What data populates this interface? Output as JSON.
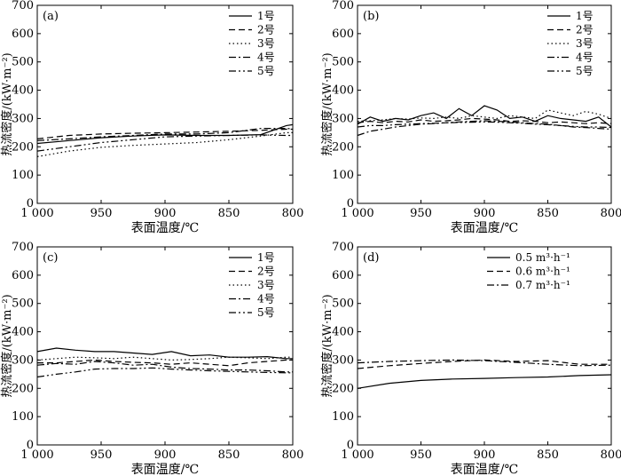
{
  "figure": {
    "panels": [
      {
        "label": "(a)",
        "xlabel": "表面温度/℃",
        "ylabel": "热流密度/(kW·m⁻²)"
      },
      {
        "label": "(b)",
        "xlabel": "表面温度/℃",
        "ylabel": "热流密度/(kW·m⁻²)"
      },
      {
        "label": "(c)",
        "xlabel": "表面温度/℃",
        "ylabel": "热流密度/(kW·m⁻²)"
      },
      {
        "label": "(d)",
        "xlabel": "表面温度/℃",
        "ylabel": "热流密度/(kW·m⁻²)"
      }
    ]
  },
  "chart_data": [
    {
      "panel": "(a)",
      "type": "line",
      "title": "",
      "xlabel": "表面温度/℃",
      "ylabel": "热流密度/(kW·m⁻²)",
      "xlim": [
        1000,
        800
      ],
      "ylim": [
        0,
        700
      ],
      "xticks": [
        1000,
        950,
        900,
        850,
        800
      ],
      "xtick_labels": [
        "1 000",
        "950",
        "900",
        "850",
        "800"
      ],
      "yticks": [
        0,
        100,
        200,
        300,
        400,
        500,
        600,
        700
      ],
      "grid": false,
      "legend_position": "top-right",
      "x": [
        1000,
        975,
        950,
        925,
        900,
        875,
        850,
        825,
        805,
        800
      ],
      "series": [
        {
          "name": "1号",
          "style": "solid",
          "values": [
            212,
            222,
            232,
            238,
            242,
            240,
            240,
            243,
            275,
            278
          ]
        },
        {
          "name": "2号",
          "style": "dashed",
          "values": [
            228,
            240,
            245,
            248,
            250,
            252,
            255,
            258,
            262,
            262
          ]
        },
        {
          "name": "3号",
          "style": "dotted",
          "values": [
            165,
            185,
            198,
            205,
            210,
            215,
            225,
            238,
            250,
            250
          ]
        },
        {
          "name": "4号",
          "style": "dashdot",
          "values": [
            222,
            228,
            235,
            240,
            245,
            245,
            250,
            265,
            265,
            263
          ]
        },
        {
          "name": "5号",
          "style": "dashdotdot",
          "values": [
            185,
            200,
            215,
            225,
            235,
            238,
            240,
            242,
            240,
            240
          ]
        }
      ]
    },
    {
      "panel": "(b)",
      "type": "line",
      "title": "",
      "xlabel": "表面温度/℃",
      "ylabel": "热流密度/(kW·m⁻²)",
      "xlim": [
        1000,
        800
      ],
      "ylim": [
        0,
        700
      ],
      "xticks": [
        1000,
        950,
        900,
        850,
        800
      ],
      "xtick_labels": [
        "1 000",
        "950",
        "900",
        "850",
        "800"
      ],
      "yticks": [
        0,
        100,
        200,
        300,
        400,
        500,
        600,
        700
      ],
      "grid": false,
      "legend_position": "top-right",
      "x": [
        1000,
        990,
        980,
        970,
        960,
        950,
        940,
        930,
        920,
        910,
        900,
        890,
        880,
        870,
        860,
        850,
        840,
        830,
        820,
        810,
        800
      ],
      "series": [
        {
          "name": "1号",
          "style": "solid",
          "values": [
            280,
            305,
            290,
            300,
            295,
            310,
            320,
            300,
            335,
            310,
            345,
            330,
            300,
            305,
            290,
            310,
            300,
            295,
            290,
            305,
            270
          ]
        },
        {
          "name": "2号",
          "style": "dashed",
          "values": [
            285,
            290,
            285,
            290,
            288,
            295,
            290,
            292,
            295,
            300,
            298,
            295,
            290,
            292,
            290,
            285,
            288,
            285,
            282,
            285,
            282
          ]
        },
        {
          "name": "3号",
          "style": "dotted",
          "values": [
            290,
            292,
            295,
            300,
            298,
            302,
            300,
            305,
            300,
            310,
            305,
            300,
            310,
            305,
            300,
            330,
            320,
            310,
            325,
            315,
            300
          ]
        },
        {
          "name": "4号",
          "style": "dashdot",
          "values": [
            240,
            255,
            262,
            270,
            275,
            280,
            282,
            285,
            288,
            290,
            292,
            290,
            288,
            285,
            282,
            280,
            275,
            270,
            268,
            265,
            262
          ]
        },
        {
          "name": "5号",
          "style": "dashdotdot",
          "values": [
            270,
            275,
            275,
            278,
            280,
            282,
            283,
            285,
            286,
            287,
            288,
            287,
            285,
            283,
            280,
            278,
            275,
            272,
            270,
            270,
            268
          ]
        }
      ]
    },
    {
      "panel": "(c)",
      "type": "line",
      "title": "",
      "xlabel": "表面温度/℃",
      "ylabel": "热流密度/(kW·m⁻²)",
      "xlim": [
        1000,
        800
      ],
      "ylim": [
        0,
        700
      ],
      "xticks": [
        1000,
        950,
        900,
        850,
        800
      ],
      "xtick_labels": [
        "1 000",
        "950",
        "900",
        "850",
        "800"
      ],
      "yticks": [
        0,
        100,
        200,
        300,
        400,
        500,
        600,
        700
      ],
      "grid": false,
      "legend_position": "top-right",
      "x": [
        1000,
        985,
        970,
        955,
        940,
        925,
        910,
        895,
        880,
        865,
        850,
        835,
        820,
        805,
        800
      ],
      "series": [
        {
          "name": "1号",
          "style": "solid",
          "values": [
            330,
            342,
            335,
            330,
            330,
            325,
            320,
            330,
            315,
            318,
            310,
            310,
            312,
            305,
            305
          ]
        },
        {
          "name": "2号",
          "style": "dashed",
          "values": [
            290,
            290,
            295,
            300,
            295,
            292,
            290,
            285,
            290,
            285,
            280,
            290,
            295,
            300,
            300
          ]
        },
        {
          "name": "3号",
          "style": "dotted",
          "values": [
            300,
            305,
            310,
            308,
            305,
            310,
            305,
            300,
            302,
            305,
            310,
            308,
            305,
            310,
            310
          ]
        },
        {
          "name": "4号",
          "style": "dashdot",
          "values": [
            282,
            288,
            285,
            295,
            290,
            282,
            285,
            275,
            270,
            268,
            265,
            265,
            262,
            258,
            258
          ]
        },
        {
          "name": "5号",
          "style": "dashdotdot",
          "values": [
            240,
            250,
            258,
            268,
            270,
            270,
            272,
            268,
            265,
            262,
            260,
            258,
            256,
            255,
            255
          ]
        }
      ]
    },
    {
      "panel": "(d)",
      "type": "line",
      "title": "",
      "xlabel": "表面温度/℃",
      "ylabel": "热流密度/(kW·m⁻²)",
      "xlim": [
        1000,
        800
      ],
      "ylim": [
        0,
        700
      ],
      "xticks": [
        1000,
        950,
        900,
        850,
        800
      ],
      "xtick_labels": [
        "1 000",
        "950",
        "900",
        "850",
        "800"
      ],
      "yticks": [
        0,
        100,
        200,
        300,
        400,
        500,
        600,
        700
      ],
      "grid": false,
      "legend_position": "top-right",
      "x": [
        1000,
        975,
        950,
        925,
        900,
        875,
        850,
        825,
        800
      ],
      "series": [
        {
          "name": "0.5 m³·h⁻¹",
          "style": "solid",
          "values": [
            200,
            218,
            228,
            233,
            235,
            238,
            240,
            245,
            248
          ]
        },
        {
          "name": "0.6 m³·h⁻¹",
          "style": "dashed",
          "values": [
            270,
            280,
            288,
            295,
            300,
            295,
            298,
            285,
            285
          ]
        },
        {
          "name": "0.7 m³·h⁻¹",
          "style": "dashdot",
          "values": [
            290,
            295,
            298,
            300,
            298,
            292,
            285,
            280,
            282
          ]
        }
      ]
    }
  ]
}
